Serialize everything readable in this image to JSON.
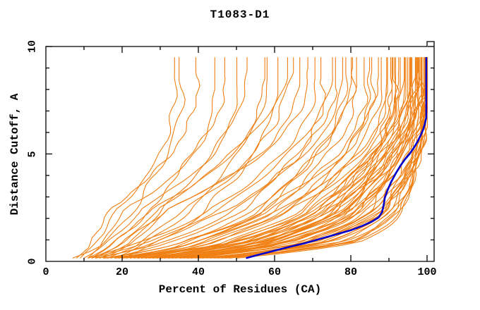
{
  "chart_data": {
    "type": "line",
    "title": "T1083-D1",
    "xlabel": "Percent of Residues (CA)",
    "ylabel": "Distance Cutoff, A",
    "xlim": [
      0,
      100
    ],
    "ylim": [
      0,
      10
    ],
    "grid": false,
    "legend": "none",
    "x_ticks": {
      "major": [
        0,
        20,
        40,
        60,
        80,
        100
      ],
      "labels": [
        "0",
        "20",
        "40",
        "60",
        "80",
        "100"
      ],
      "minor_step": 10
    },
    "y_ticks": {
      "major": [
        0,
        5,
        10
      ],
      "labels": [
        "0",
        "5",
        "10"
      ],
      "minor_step": 1
    },
    "colors": {
      "models": "#F08014",
      "highlight": "#0000CC",
      "frame": "#000000",
      "background": "#FFFFFF"
    },
    "curve_y_min": 0.15,
    "curve_y_max": 9.5,
    "highlight_series": {
      "name": "highlighted-model",
      "color": "#0000CC",
      "points": [
        [
          52.5,
          0.15
        ],
        [
          56,
          0.32
        ],
        [
          60,
          0.5
        ],
        [
          64,
          0.68
        ],
        [
          68,
          0.85
        ],
        [
          72,
          1.05
        ],
        [
          76,
          1.25
        ],
        [
          80,
          1.45
        ],
        [
          83,
          1.65
        ],
        [
          85.5,
          1.85
        ],
        [
          87.3,
          2.05
        ],
        [
          88.2,
          2.3
        ],
        [
          88.6,
          2.6
        ],
        [
          88.9,
          2.95
        ],
        [
          89.6,
          3.3
        ],
        [
          90.6,
          3.7
        ],
        [
          91.8,
          4.1
        ],
        [
          93,
          4.45
        ],
        [
          94.2,
          4.75
        ],
        [
          95.4,
          5.0
        ],
        [
          96.6,
          5.3
        ],
        [
          97.6,
          5.6
        ],
        [
          98.4,
          5.9
        ],
        [
          99.0,
          6.15
        ],
        [
          99.4,
          6.4
        ],
        [
          99.8,
          6.7
        ],
        [
          99.8,
          9.5
        ]
      ]
    },
    "model_series": {
      "name": "server-models",
      "color": "#F08014",
      "count": 75,
      "anchor_format": [
        "x_at_y0.15",
        "x_at_y1.0",
        "x_at_y2.5",
        "x_at_y(9.5-tail)",
        "vertical_tail_len"
      ],
      "curves": [
        [
          7,
          16,
          23,
          36,
          1.1
        ],
        [
          9,
          13,
          19,
          34,
          0.7
        ],
        [
          11,
          15,
          21,
          44,
          1.5
        ],
        [
          8,
          12,
          17,
          40,
          0.6
        ],
        [
          12,
          19,
          27,
          47,
          0.9
        ],
        [
          10,
          17,
          25,
          50,
          1.3
        ],
        [
          14,
          22,
          31,
          53,
          0.6
        ],
        [
          11,
          18,
          28,
          57,
          1.0
        ],
        [
          15,
          23,
          33,
          60,
          1.6
        ],
        [
          13,
          20,
          30,
          63,
          0.8
        ],
        [
          16,
          25,
          36,
          66,
          1.2
        ],
        [
          12,
          21,
          32,
          69,
          0.5
        ],
        [
          18,
          27,
          38,
          58,
          1.0
        ],
        [
          20,
          30,
          42,
          64,
          0.7
        ],
        [
          14,
          30,
          48,
          73,
          1.0
        ],
        [
          17,
          34,
          52,
          76,
          1.4
        ],
        [
          20,
          38,
          56,
          79,
          0.8
        ],
        [
          22,
          42,
          60,
          82,
          1.1
        ],
        [
          25,
          46,
          64,
          85,
          0.6
        ],
        [
          28,
          50,
          68,
          88,
          1.5
        ],
        [
          31,
          54,
          72,
          91,
          0.9
        ],
        [
          34,
          58,
          76,
          94,
          1.2
        ],
        [
          37,
          62,
          80,
          97,
          0.7
        ],
        [
          40,
          66,
          84,
          99,
          1.0
        ],
        [
          15,
          36,
          55,
          81,
          0.5
        ],
        [
          18,
          40,
          59,
          84,
          1.3
        ],
        [
          21,
          44,
          63,
          87,
          0.9
        ],
        [
          24,
          48,
          67,
          90,
          1.6
        ],
        [
          27,
          52,
          71,
          93,
          0.6
        ],
        [
          30,
          56,
          75,
          96,
          1.1
        ],
        [
          33,
          60,
          79,
          98,
          0.8
        ],
        [
          36,
          64,
          82,
          99.5,
          1.4
        ],
        [
          13,
          32,
          50,
          78,
          1.0
        ],
        [
          16,
          37,
          57,
          86,
          0.7
        ],
        [
          19,
          41,
          61,
          89,
          1.2
        ],
        [
          23,
          45,
          65,
          92,
          0.5
        ],
        [
          26,
          49,
          69,
          95,
          1.5
        ],
        [
          29,
          53,
          73,
          97.5,
          0.9
        ],
        [
          32,
          57,
          77,
          99,
          1.1
        ],
        [
          12,
          28,
          46,
          75,
          0.8
        ],
        [
          35,
          61,
          80,
          98.5,
          1.3
        ],
        [
          38,
          65,
          83,
          99.8,
          0.6
        ],
        [
          11,
          26,
          44,
          71,
          1.0
        ],
        [
          22,
          40,
          58,
          80,
          1.2
        ],
        [
          30,
          60,
          78,
          95,
          2.0
        ],
        [
          33,
          64,
          82,
          97,
          1.5
        ],
        [
          36,
          68,
          85,
          98,
          2.5
        ],
        [
          39,
          72,
          88,
          99,
          1.8
        ],
        [
          42,
          76,
          90,
          99.5,
          2.2
        ],
        [
          45,
          80,
          92,
          100,
          1.6
        ],
        [
          48,
          82,
          93,
          99.7,
          2.0
        ],
        [
          50,
          84,
          94,
          100,
          1.4
        ],
        [
          28,
          58,
          76,
          94,
          1.0
        ],
        [
          31,
          62,
          80,
          96,
          2.3
        ],
        [
          34,
          66,
          83,
          97.5,
          1.1
        ],
        [
          37,
          70,
          86,
          98.5,
          1.9
        ],
        [
          40,
          74,
          89,
          99.2,
          1.3
        ],
        [
          43,
          77,
          90.5,
          99.8,
          2.1
        ],
        [
          46,
          81,
          92.5,
          100,
          1.0
        ],
        [
          26,
          56,
          74,
          93,
          1.7
        ],
        [
          29,
          61,
          79,
          95.5,
          1.2
        ],
        [
          32,
          65,
          82.5,
          96.5,
          2.4
        ],
        [
          35,
          69,
          85.5,
          98,
          0.9
        ],
        [
          38,
          73,
          88.5,
          99,
          1.6
        ],
        [
          41,
          75,
          89.5,
          99.4,
          1.1
        ],
        [
          44,
          79,
          91.5,
          99.9,
          2.0
        ],
        [
          47,
          83,
          93.5,
          100,
          1.5
        ],
        [
          24,
          54,
          72,
          92,
          1.0
        ],
        [
          27,
          59,
          77,
          94.5,
          1.8
        ],
        [
          20,
          55,
          75,
          96,
          3.0
        ],
        [
          25,
          60,
          80,
          97.5,
          2.6
        ],
        [
          30,
          68,
          86,
          99,
          3.5
        ],
        [
          35,
          72,
          89,
          99.6,
          2.8
        ],
        [
          15,
          50,
          70,
          90,
          2.0
        ],
        [
          18,
          52,
          73,
          91.5,
          2.4
        ]
      ]
    },
    "wiggle_seed": 42
  }
}
